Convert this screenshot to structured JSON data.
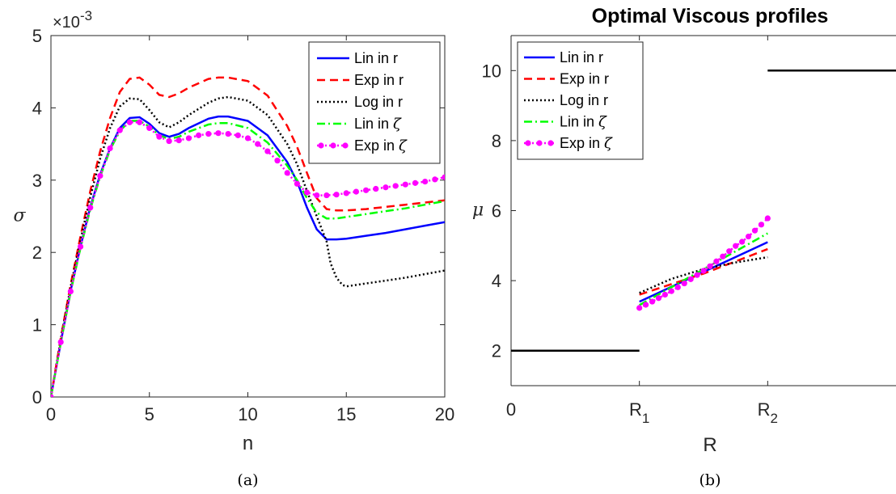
{
  "chart_data": [
    {
      "type": "line",
      "title": "",
      "xlabel": "n",
      "ylabel": "σ",
      "xlim": [
        0,
        20
      ],
      "ylim": [
        0,
        5
      ],
      "y_multiplier": "×10",
      "y_multiplier_exp": "-3",
      "xticks": [
        "0",
        "5",
        "10",
        "15",
        "20"
      ],
      "yticks": [
        "0",
        "1",
        "2",
        "3",
        "4",
        "5"
      ],
      "caption": "(a)",
      "grid": false,
      "legend_position": "top-right",
      "series": [
        {
          "name": "Lin in r",
          "color": "#0000ff",
          "dash": "",
          "marker": false,
          "x": [
            0,
            0.5,
            1,
            1.5,
            2,
            2.5,
            3,
            3.5,
            4,
            4.5,
            5,
            5.5,
            6,
            6.5,
            7,
            8,
            8.5,
            9,
            10,
            11,
            12,
            12.5,
            13,
            13.5,
            14,
            14.5,
            15,
            16,
            17,
            18,
            19,
            20
          ],
          "y": [
            0,
            0.76,
            1.47,
            2.08,
            2.63,
            3.08,
            3.44,
            3.72,
            3.86,
            3.87,
            3.78,
            3.65,
            3.6,
            3.64,
            3.72,
            3.85,
            3.88,
            3.88,
            3.82,
            3.62,
            3.25,
            2.98,
            2.62,
            2.32,
            2.18,
            2.18,
            2.19,
            2.23,
            2.27,
            2.32,
            2.37,
            2.42
          ]
        },
        {
          "name": "Exp in r",
          "color": "#ff0000",
          "dash": "10,6",
          "marker": false,
          "x": [
            0,
            0.5,
            1,
            1.5,
            2,
            2.5,
            3,
            3.5,
            4,
            4.5,
            5,
            5.5,
            6,
            6.5,
            7,
            8,
            8.5,
            9,
            10,
            11,
            12,
            12.5,
            13,
            13.5,
            14,
            14.5,
            15,
            16,
            17,
            18,
            19,
            20
          ],
          "y": [
            0,
            0.82,
            1.55,
            2.22,
            2.85,
            3.4,
            3.86,
            4.22,
            4.4,
            4.42,
            4.32,
            4.18,
            4.15,
            4.2,
            4.28,
            4.4,
            4.42,
            4.42,
            4.37,
            4.17,
            3.75,
            3.46,
            3.1,
            2.75,
            2.6,
            2.58,
            2.58,
            2.6,
            2.63,
            2.66,
            2.69,
            2.72
          ]
        },
        {
          "name": "Log in r",
          "color": "#000000",
          "dash": "2,3",
          "marker": false,
          "x": [
            0,
            0.5,
            1,
            1.5,
            2,
            2.5,
            3,
            3.5,
            4,
            4.5,
            5,
            5.5,
            6,
            6.5,
            7,
            8,
            8.5,
            9,
            10,
            11,
            12,
            12.5,
            13,
            13.5,
            14,
            14.2,
            14.5,
            14.8,
            15,
            16,
            17,
            18,
            19,
            20
          ],
          "y": [
            0,
            0.8,
            1.52,
            2.17,
            2.77,
            3.3,
            3.72,
            4.02,
            4.13,
            4.12,
            3.97,
            3.8,
            3.73,
            3.8,
            3.9,
            4.07,
            4.13,
            4.15,
            4.1,
            3.9,
            3.5,
            3.22,
            2.85,
            2.5,
            2.15,
            1.85,
            1.65,
            1.55,
            1.53,
            1.57,
            1.61,
            1.65,
            1.7,
            1.75
          ]
        },
        {
          "name": "Lin in ζ",
          "color": "#00ff00",
          "dash": "10,4,2,4",
          "marker": false,
          "x": [
            0,
            0.5,
            1,
            1.5,
            2,
            2.5,
            3,
            3.5,
            4,
            4.5,
            5,
            5.5,
            6,
            6.5,
            7,
            8,
            8.5,
            9,
            10,
            11,
            12,
            12.5,
            13,
            13.5,
            14,
            14.5,
            15,
            16,
            17,
            18,
            19,
            20
          ],
          "y": [
            0,
            0.75,
            1.45,
            2.06,
            2.6,
            3.05,
            3.42,
            3.68,
            3.82,
            3.82,
            3.74,
            3.62,
            3.57,
            3.6,
            3.67,
            3.77,
            3.79,
            3.79,
            3.72,
            3.52,
            3.2,
            3.0,
            2.75,
            2.55,
            2.47,
            2.47,
            2.49,
            2.53,
            2.57,
            2.61,
            2.66,
            2.71
          ]
        },
        {
          "name": "Exp in ζ",
          "color": "#ff00ff",
          "dash": "2,3",
          "marker": true,
          "x": [
            0,
            0.5,
            1,
            1.5,
            2,
            2.5,
            3,
            3.5,
            4,
            4.5,
            5,
            5.5,
            6,
            6.5,
            7,
            7.5,
            8,
            8.5,
            9,
            9.5,
            10,
            10.5,
            11,
            11.5,
            12,
            12.5,
            13,
            13.5,
            14,
            14.5,
            15,
            15.5,
            16,
            16.5,
            17,
            17.5,
            18,
            18.5,
            19,
            19.5,
            20
          ],
          "y": [
            0,
            0.76,
            1.46,
            2.08,
            2.62,
            3.06,
            3.44,
            3.69,
            3.8,
            3.8,
            3.72,
            3.6,
            3.54,
            3.55,
            3.58,
            3.62,
            3.64,
            3.65,
            3.64,
            3.62,
            3.58,
            3.5,
            3.4,
            3.27,
            3.1,
            2.95,
            2.83,
            2.79,
            2.79,
            2.8,
            2.82,
            2.84,
            2.86,
            2.88,
            2.9,
            2.92,
            2.94,
            2.96,
            2.98,
            3.01,
            3.04
          ]
        }
      ]
    },
    {
      "type": "line",
      "title": "Optimal Viscous profiles",
      "xlabel": "R",
      "ylabel": "μ",
      "xlim": [
        0,
        3
      ],
      "ylim": [
        1,
        11
      ],
      "xticks": [
        {
          "value": 0,
          "label": "0",
          "sub": ""
        },
        {
          "value": 1,
          "label": "R",
          "sub": "1"
        },
        {
          "value": 2,
          "label": "R",
          "sub": "2"
        }
      ],
      "yticks": [
        "2",
        "4",
        "6",
        "8",
        "10"
      ],
      "caption": "(b)",
      "grid": false,
      "legend_position": "top-left",
      "series": [
        {
          "name": "Lin in r",
          "color": "#0000ff",
          "dash": "",
          "marker": false,
          "x": [
            1,
            2
          ],
          "y": [
            3.4,
            5.1
          ]
        },
        {
          "name": "Exp in r",
          "color": "#ff0000",
          "dash": "10,6",
          "marker": false,
          "x": [
            1,
            1.5,
            2
          ],
          "y": [
            3.6,
            4.2,
            4.9
          ]
        },
        {
          "name": "Log in r",
          "color": "#000000",
          "dash": "2,3",
          "marker": false,
          "x": [
            1,
            1.25,
            1.5,
            1.75,
            2
          ],
          "y": [
            3.65,
            4.05,
            4.33,
            4.52,
            4.67
          ]
        },
        {
          "name": "Lin in ζ",
          "color": "#00ff00",
          "dash": "10,4,2,4",
          "marker": false,
          "x": [
            1,
            2
          ],
          "y": [
            3.3,
            5.35
          ]
        },
        {
          "name": "Exp in ζ",
          "color": "#ff00ff",
          "dash": "2,3",
          "marker": true,
          "x": [
            1,
            1.05,
            1.1,
            1.15,
            1.2,
            1.25,
            1.3,
            1.35,
            1.4,
            1.45,
            1.5,
            1.55,
            1.6,
            1.65,
            1.7,
            1.75,
            1.8,
            1.85,
            1.9,
            1.95,
            2
          ],
          "y": [
            3.22,
            3.31,
            3.4,
            3.5,
            3.6,
            3.7,
            3.81,
            3.92,
            4.04,
            4.16,
            4.28,
            4.41,
            4.55,
            4.69,
            4.84,
            4.99,
            5.11,
            5.26,
            5.43,
            5.6,
            5.78
          ]
        },
        {
          "name": "",
          "color": "#000000",
          "dash": "",
          "marker": false,
          "x": [
            0,
            1
          ],
          "y": [
            2,
            2
          ]
        },
        {
          "name": "",
          "color": "#000000",
          "dash": "",
          "marker": false,
          "x": [
            2,
            3
          ],
          "y": [
            10,
            10
          ]
        }
      ]
    }
  ]
}
